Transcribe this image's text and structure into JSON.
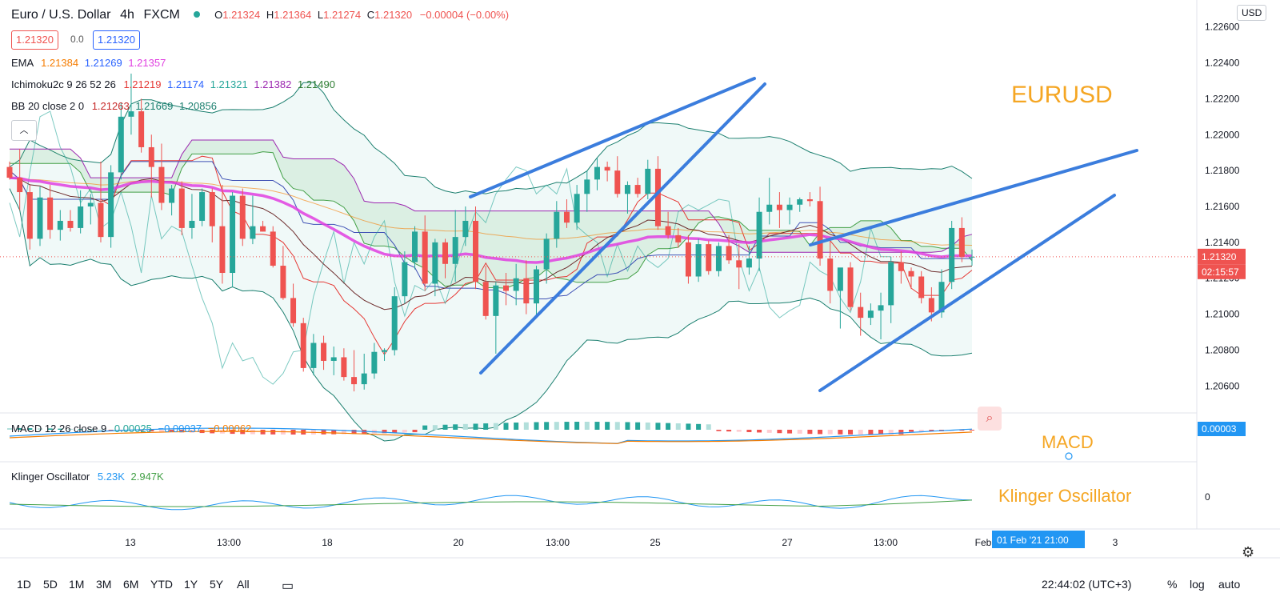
{
  "header": {
    "symbol_title": "Euro / U.S. Dollar",
    "interval": "4h",
    "exchange": "FXCM",
    "ohlc": {
      "o_label": "O",
      "o": "1.21324",
      "h_label": "H",
      "h": "1.21364",
      "l_label": "L",
      "l": "1.21274",
      "c_label": "C",
      "c": "1.21320",
      "change": "−0.00004 (−0.00%)"
    },
    "bid": "1.21320",
    "spread": "0.0",
    "ask": "1.21320",
    "currency": "USD"
  },
  "indicators": {
    "ema": {
      "label": "EMA",
      "v1": "1.21384",
      "v2": "1.21269",
      "v3": "1.21357"
    },
    "ichimoku": {
      "label": "Ichimoku2c 9 26 52 26",
      "v1": "1.21219",
      "v2": "1.21174",
      "v3": "1.21321",
      "v4": "1.21382",
      "v5": "1.21490"
    },
    "bb": {
      "label": "BB 20 close 2 0",
      "v1": "1.21263",
      "v2": "1.21669",
      "v3": "1.20856"
    },
    "macd": {
      "label": "MACD 12 26 close 9",
      "v1": "0.00025",
      "v2": "−0.00037",
      "v3": "−0.00062",
      "axis_value": "0.00003"
    },
    "klinger": {
      "label": "Klinger Oscillator",
      "v1": "5.23K",
      "v2": "2.947K",
      "axis_value": "0"
    }
  },
  "annotations": {
    "eurusd": "EURUSD",
    "macd": "MACD",
    "klinger": "Klinger Oscillator"
  },
  "price_badge": {
    "price": "1.21320",
    "countdown": "02:15:57"
  },
  "crosshair_date": "01 Feb '21   21:00",
  "bottom": {
    "timeframes": [
      "1D",
      "5D",
      "1M",
      "3M",
      "6M",
      "YTD",
      "1Y",
      "5Y",
      "All"
    ],
    "clock": "22:44:02 (UTC+3)",
    "percent": "%",
    "log": "log",
    "auto": "auto"
  },
  "colors": {
    "up": "#26a69a",
    "down": "#ef5350",
    "ema": "#e040e0",
    "trend": "#3b7ddd",
    "orange": "#f5a623"
  },
  "chart_data": {
    "type": "candlestick",
    "title": "Euro / U.S. Dollar 4h FXCM",
    "y_ticks": [
      "1.22600",
      "1.22400",
      "1.22200",
      "1.22000",
      "1.21800",
      "1.21600",
      "1.21400",
      "1.21200",
      "1.21000",
      "1.20800",
      "1.20600"
    ],
    "ylim": [
      1.2045,
      1.2275
    ],
    "x_ticks": [
      "13",
      "13:00",
      "18",
      "20",
      "13:00",
      "25",
      "27",
      "13:00",
      "Feb",
      "3"
    ],
    "candles": [
      [
        1.2182,
        1.2185,
        1.2175,
        1.2176
      ],
      [
        1.2176,
        1.2192,
        1.2158,
        1.2168
      ],
      [
        1.2168,
        1.2172,
        1.2136,
        1.2142
      ],
      [
        1.2142,
        1.2171,
        1.2138,
        1.2165
      ],
      [
        1.2165,
        1.2172,
        1.2142,
        1.2147
      ],
      [
        1.2147,
        1.2158,
        1.2141,
        1.2152
      ],
      [
        1.2152,
        1.2158,
        1.2146,
        1.2148
      ],
      [
        1.2148,
        1.2169,
        1.2145,
        1.216
      ],
      [
        1.216,
        1.2167,
        1.215,
        1.2162
      ],
      [
        1.2162,
        1.2185,
        1.214,
        1.2143
      ],
      [
        1.2143,
        1.2183,
        1.2137,
        1.2179
      ],
      [
        1.2179,
        1.2218,
        1.2175,
        1.221
      ],
      [
        1.221,
        1.2234,
        1.22,
        1.2213
      ],
      [
        1.2213,
        1.222,
        1.219,
        1.2193
      ],
      [
        1.2193,
        1.22,
        1.2165,
        1.2182
      ],
      [
        1.2182,
        1.2195,
        1.2158,
        1.2162
      ],
      [
        1.2162,
        1.2172,
        1.2155,
        1.217
      ],
      [
        1.217,
        1.2174,
        1.2144,
        1.2148
      ],
      [
        1.2148,
        1.2167,
        1.2142,
        1.2152
      ],
      [
        1.2152,
        1.217,
        1.2149,
        1.2168
      ],
      [
        1.2168,
        1.217,
        1.214,
        1.2149
      ],
      [
        1.2149,
        1.2172,
        1.2117,
        1.2123
      ],
      [
        1.2123,
        1.2168,
        1.2115,
        1.2166
      ],
      [
        1.2166,
        1.217,
        1.2138,
        1.2142
      ],
      [
        1.2142,
        1.2166,
        1.2139,
        1.2149
      ],
      [
        1.2149,
        1.2152,
        1.2146,
        1.2146
      ],
      [
        1.2146,
        1.2149,
        1.2126,
        1.2127
      ],
      [
        1.2127,
        1.2138,
        1.2108,
        1.2109
      ],
      [
        1.2109,
        1.2117,
        1.2093,
        1.2095
      ],
      [
        1.2095,
        1.2098,
        1.2068,
        1.207
      ],
      [
        1.207,
        1.2089,
        1.2066,
        1.2084
      ],
      [
        1.2084,
        1.2088,
        1.2069,
        1.2074
      ],
      [
        1.2074,
        1.2082,
        1.2066,
        1.2076
      ],
      [
        1.2076,
        1.2081,
        1.2063,
        1.2065
      ],
      [
        1.2065,
        1.208,
        1.2057,
        1.2061
      ],
      [
        1.2061,
        1.2078,
        1.2058,
        1.2067
      ],
      [
        1.2067,
        1.2084,
        1.2064,
        1.2079
      ],
      [
        1.2079,
        1.2081,
        1.2074,
        1.208
      ],
      [
        1.208,
        1.2115,
        1.2077,
        1.211
      ],
      [
        1.211,
        1.2135,
        1.2106,
        1.2129
      ],
      [
        1.2129,
        1.2149,
        1.2125,
        1.2146
      ],
      [
        1.2146,
        1.2155,
        1.2113,
        1.2117
      ],
      [
        1.2117,
        1.2142,
        1.211,
        1.214
      ],
      [
        1.214,
        1.2142,
        1.212,
        1.2128
      ],
      [
        1.2128,
        1.2158,
        1.2118,
        1.2143
      ],
      [
        1.2143,
        1.216,
        1.2138,
        1.2152
      ],
      [
        1.2152,
        1.216,
        1.2114,
        1.2118
      ],
      [
        1.2118,
        1.2127,
        1.2097,
        1.2099
      ],
      [
        1.2099,
        1.2118,
        1.2078,
        1.2116
      ],
      [
        1.2116,
        1.2123,
        1.2105,
        1.2113
      ],
      [
        1.2113,
        1.2128,
        1.2105,
        1.212
      ],
      [
        1.212,
        1.213,
        1.21,
        1.2106
      ],
      [
        1.2106,
        1.2127,
        1.2099,
        1.2125
      ],
      [
        1.2125,
        1.2145,
        1.2117,
        1.2142
      ],
      [
        1.2142,
        1.2163,
        1.2137,
        1.2157
      ],
      [
        1.2157,
        1.2164,
        1.2148,
        1.2151
      ],
      [
        1.2151,
        1.2172,
        1.2147,
        1.2167
      ],
      [
        1.2167,
        1.218,
        1.2157,
        1.2175
      ],
      [
        1.2175,
        1.2187,
        1.2169,
        1.2182
      ],
      [
        1.2182,
        1.2185,
        1.2174,
        1.218
      ],
      [
        1.218,
        1.2188,
        1.2165,
        1.2167
      ],
      [
        1.2167,
        1.2174,
        1.2156,
        1.2172
      ],
      [
        1.2172,
        1.2176,
        1.2165,
        1.2167
      ],
      [
        1.2167,
        1.2186,
        1.2164,
        1.2181
      ],
      [
        1.2181,
        1.2188,
        1.2147,
        1.2149
      ],
      [
        1.2149,
        1.2157,
        1.2142,
        1.2144
      ],
      [
        1.2144,
        1.2148,
        1.2137,
        1.214
      ],
      [
        1.214,
        1.2144,
        1.2117,
        1.2121
      ],
      [
        1.2121,
        1.2142,
        1.2118,
        1.2139
      ],
      [
        1.2139,
        1.2141,
        1.2122,
        1.2124
      ],
      [
        1.2124,
        1.214,
        1.2121,
        1.2138
      ],
      [
        1.2138,
        1.2144,
        1.2128,
        1.213
      ],
      [
        1.213,
        1.2139,
        1.2114,
        1.2126
      ],
      [
        1.2126,
        1.2138,
        1.2122,
        1.2131
      ],
      [
        1.2131,
        1.2165,
        1.2124,
        1.2157
      ],
      [
        1.2157,
        1.2176,
        1.215,
        1.2161
      ],
      [
        1.2161,
        1.2168,
        1.2148,
        1.2158
      ],
      [
        1.2158,
        1.2165,
        1.215,
        1.2161
      ],
      [
        1.2161,
        1.2165,
        1.2157,
        1.2164
      ],
      [
        1.2164,
        1.2168,
        1.216,
        1.2163
      ],
      [
        1.2163,
        1.2171,
        1.2127,
        1.2131
      ],
      [
        1.2131,
        1.2143,
        1.2106,
        1.2113
      ],
      [
        1.2113,
        1.2125,
        1.2092,
        1.2126
      ],
      [
        1.2126,
        1.2129,
        1.2102,
        1.2104
      ],
      [
        1.2104,
        1.2112,
        1.2088,
        1.2098
      ],
      [
        1.2098,
        1.2106,
        1.2094,
        1.2102
      ],
      [
        1.2102,
        1.2112,
        1.2086,
        1.2105
      ],
      [
        1.2105,
        1.2132,
        1.2095,
        1.2129
      ],
      [
        1.2129,
        1.2135,
        1.2117,
        1.2124
      ],
      [
        1.2124,
        1.2126,
        1.2114,
        1.2121
      ],
      [
        1.2121,
        1.2124,
        1.2106,
        1.2109
      ],
      [
        1.2109,
        1.2115,
        1.2096,
        1.2101
      ],
      [
        1.2101,
        1.2125,
        1.2098,
        1.2118
      ],
      [
        1.2118,
        1.2152,
        1.2114,
        1.2148
      ],
      [
        1.2148,
        1.2154,
        1.2129,
        1.2132
      ],
      [
        1.2132,
        1.2136,
        1.2127,
        1.2132
      ]
    ]
  }
}
